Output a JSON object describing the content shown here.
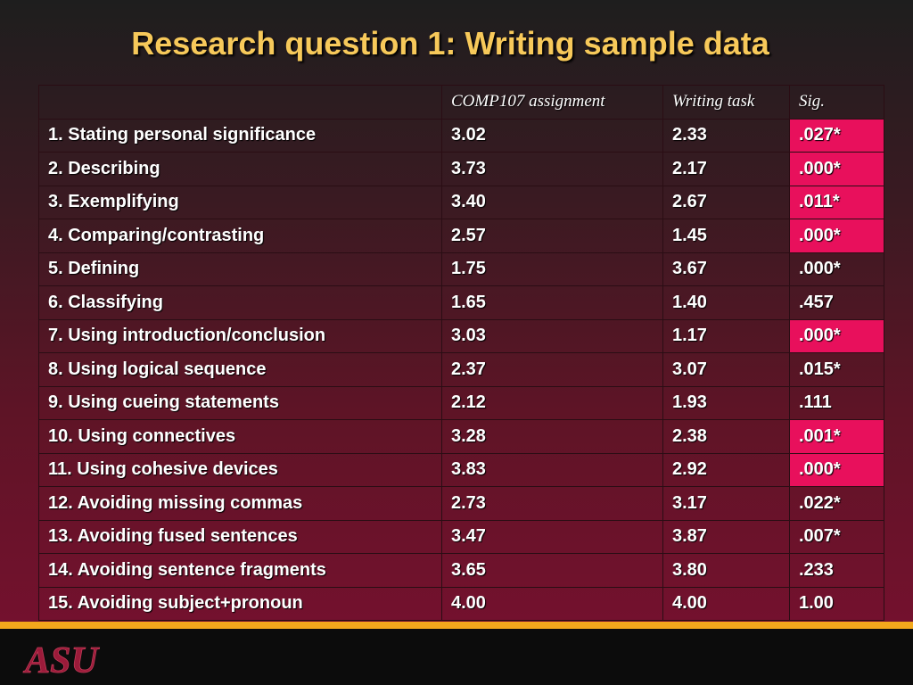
{
  "slide": {
    "title": "Research question 1:  Writing sample data",
    "logo_text": "ASU",
    "colors": {
      "title": "#f7c95a",
      "highlight": "#e8105c",
      "stripe": "#f3a81c",
      "logo": "#9b1b3a"
    }
  },
  "table": {
    "headers": [
      "",
      "COMP107 assignment",
      "Writing task",
      "Sig."
    ],
    "rows": [
      {
        "label": "1. Stating personal significance",
        "comp": "3.02",
        "task": "2.33",
        "sig": ".027*",
        "highlight": true
      },
      {
        "label": "2. Describing",
        "comp": "3.73",
        "task": "2.17",
        "sig": ".000*",
        "highlight": true
      },
      {
        "label": "3. Exemplifying",
        "comp": "3.40",
        "task": "2.67",
        "sig": ".011*",
        "highlight": true
      },
      {
        "label": "4. Comparing/contrasting",
        "comp": "2.57",
        "task": "1.45",
        "sig": ".000*",
        "highlight": true
      },
      {
        "label": "5. Defining",
        "comp": "1.75",
        "task": "3.67",
        "sig": ".000*",
        "highlight": false
      },
      {
        "label": "6. Classifying",
        "comp": "1.65",
        "task": "1.40",
        "sig": ".457",
        "highlight": false
      },
      {
        "label": "7. Using introduction/conclusion",
        "comp": "3.03",
        "task": "1.17",
        "sig": ".000*",
        "highlight": true
      },
      {
        "label": "8. Using logical sequence",
        "comp": "2.37",
        "task": "3.07",
        "sig": ".015*",
        "highlight": false
      },
      {
        "label": "9. Using cueing statements",
        "comp": "2.12",
        "task": "1.93",
        "sig": ".111",
        "highlight": false
      },
      {
        "label": "10. Using connectives",
        "comp": "3.28",
        "task": "2.38",
        "sig": ".001*",
        "highlight": true
      },
      {
        "label": "11. Using cohesive devices",
        "comp": "3.83",
        "task": "2.92",
        "sig": ".000*",
        "highlight": true
      },
      {
        "label": "12. Avoiding missing commas",
        "comp": "2.73",
        "task": "3.17",
        "sig": ".022*",
        "highlight": false
      },
      {
        "label": "13. Avoiding fused sentences",
        "comp": "3.47",
        "task": "3.87",
        "sig": ".007*",
        "highlight": false
      },
      {
        "label": "14. Avoiding sentence fragments",
        "comp": "3.65",
        "task": "3.80",
        "sig": ".233",
        "highlight": false
      },
      {
        "label": "15. Avoiding subject+pronoun",
        "comp": "4.00",
        "task": "4.00",
        "sig": "1.00",
        "highlight": false
      }
    ]
  }
}
